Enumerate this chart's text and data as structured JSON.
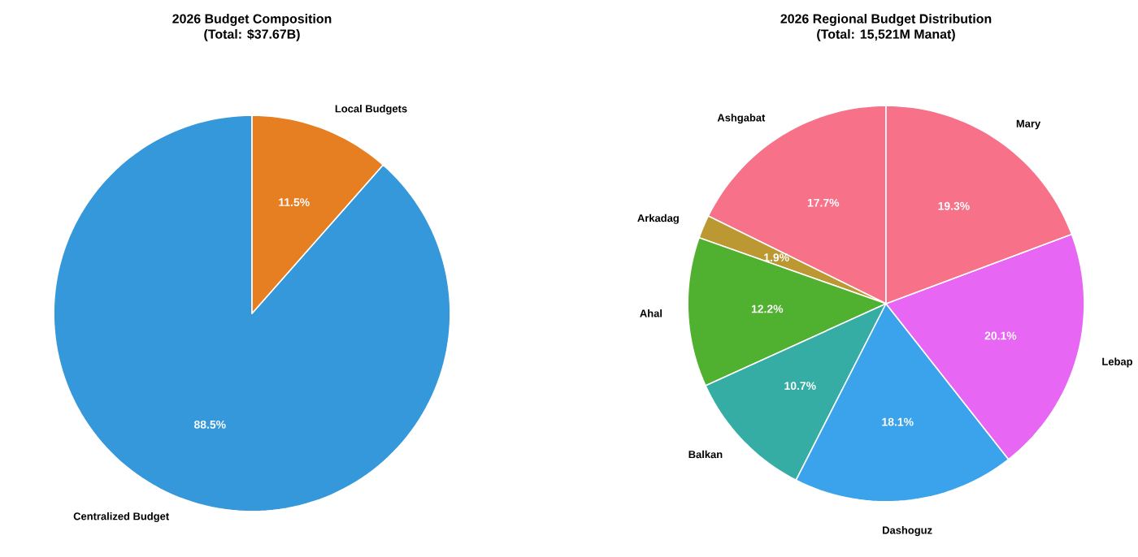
{
  "chart_data": [
    {
      "type": "pie",
      "title": "2026 Budget Composition",
      "subtitle": "(Total: $37.67B)",
      "categories": [
        "Centralized Budget",
        "Local Budgets"
      ],
      "values": [
        88.5,
        11.5
      ],
      "colors": [
        "#3498db",
        "#e67e22"
      ],
      "value_labels": [
        "88.5%",
        "11.5%"
      ]
    },
    {
      "type": "pie",
      "title": "2026 Regional Budget Distribution",
      "subtitle": "(Total: 15,521M Manat)",
      "categories": [
        "Ashgabat",
        "Arkadag",
        "Ahal",
        "Balkan",
        "Dashoguz",
        "Lebap",
        "Mary"
      ],
      "values": [
        17.7,
        1.9,
        12.2,
        10.7,
        18.1,
        20.1,
        19.3
      ],
      "colors": [
        "#f77189",
        "#bb9832",
        "#50b131",
        "#36ada4",
        "#3ba3ec",
        "#e866f4",
        "#f77189"
      ],
      "value_labels": [
        "17.7%",
        "1.9%",
        "12.2%",
        "10.7%",
        "18.1%",
        "20.1%",
        "19.3%"
      ]
    }
  ]
}
